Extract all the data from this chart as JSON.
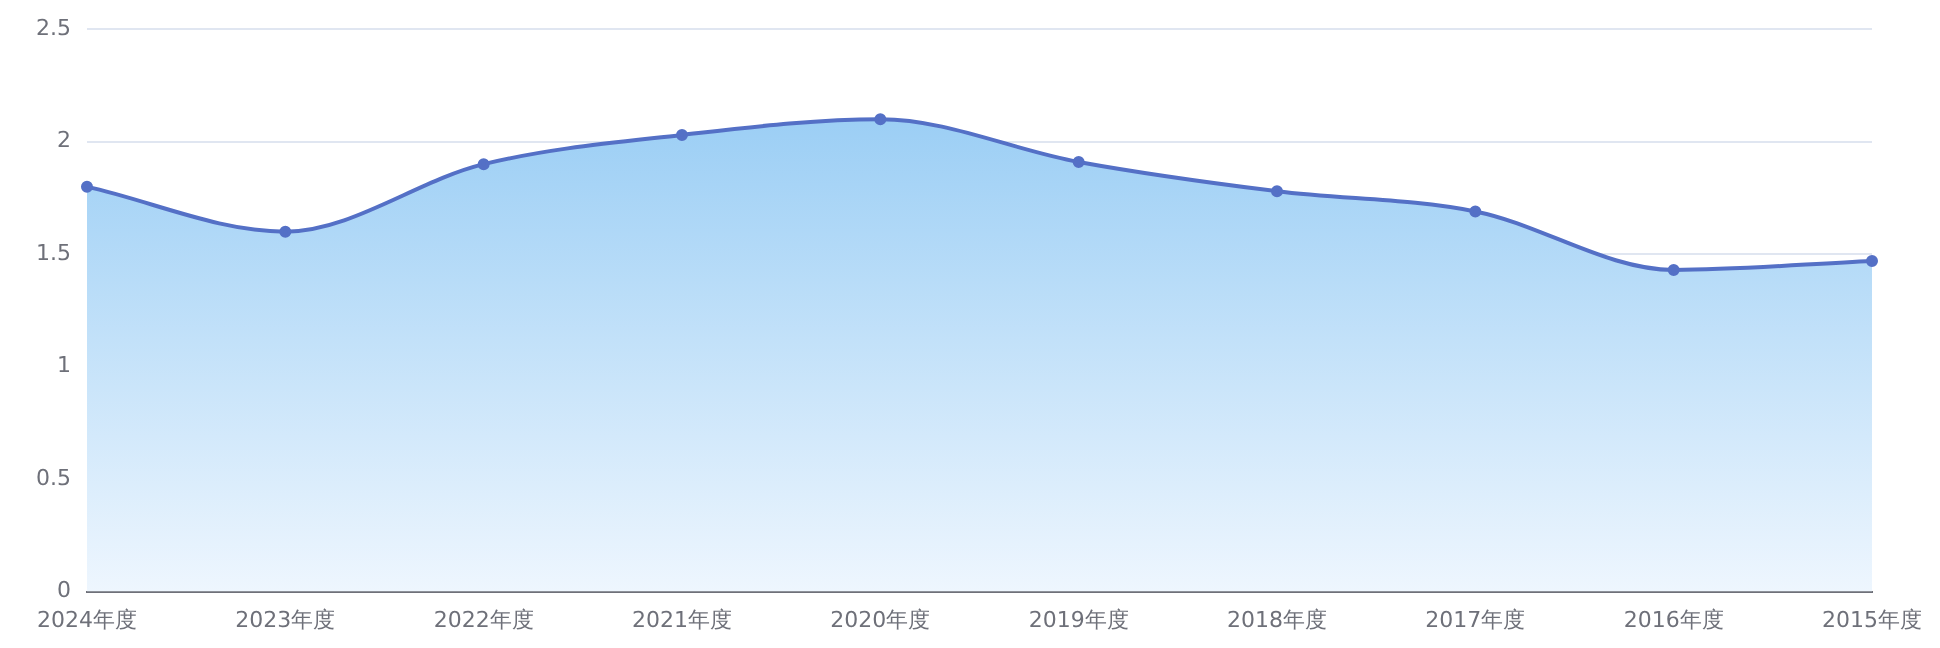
{
  "chart_data": {
    "type": "area",
    "categories": [
      "2024年度",
      "2023年度",
      "2022年度",
      "2021年度",
      "2020年度",
      "2019年度",
      "2018年度",
      "2017年度",
      "2016年度",
      "2015年度"
    ],
    "series": [
      {
        "color": "#5470c6",
        "values": [
          1.8,
          1.6,
          1.9,
          2.03,
          2.1,
          1.91,
          1.78,
          1.69,
          1.43,
          1.47
        ]
      }
    ],
    "ylim": [
      0,
      2.5
    ],
    "yticks": [
      0,
      0.5,
      1,
      1.5,
      2,
      2.5
    ],
    "grid": "y",
    "legend": false,
    "marker": "circle",
    "line_style": "solid"
  }
}
